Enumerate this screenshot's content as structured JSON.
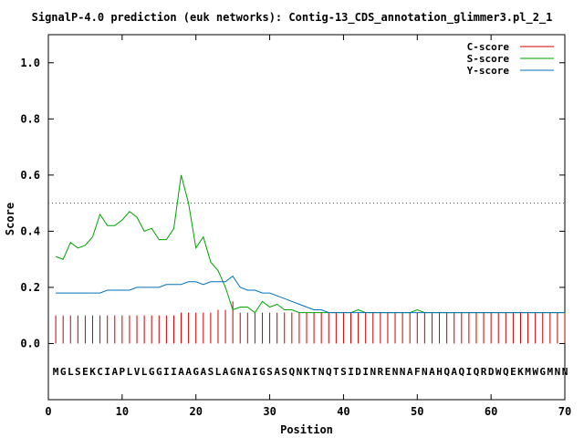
{
  "chart_data": {
    "type": "line",
    "title": "SignalP-4.0 prediction (euk networks): Contig-13_CDS_annotation_glimmer3.pl_2_1",
    "xlabel": "Position",
    "ylabel": "Score",
    "xlim": [
      0,
      70
    ],
    "ylim": [
      -0.2,
      1.1
    ],
    "xticks": [
      0,
      10,
      20,
      30,
      40,
      50,
      60,
      70
    ],
    "yticks": [
      0.0,
      0.2,
      0.4,
      0.6,
      0.8,
      1.0
    ],
    "xtick_labels": [
      "0",
      "10",
      "20",
      "30",
      "40",
      "50",
      "60",
      "70"
    ],
    "ytick_labels": [
      "0.0",
      "0.2",
      "0.4",
      "0.6",
      "0.8",
      "1.0"
    ],
    "grid": false,
    "legend_position": "top-right",
    "threshold": {
      "y": 0.5,
      "color": "#cc00cc",
      "style": "dotted"
    },
    "sequence": "MGLSEKCIAPLVLGGIIAAGASLAGNAIGSASQNKTNQTSIDINRENNAFNAHQAQIQRDWQEKMWGMNN",
    "sequence_y": -0.1,
    "series": [
      {
        "name": "C-score",
        "style": "impulses",
        "color": "#cc0000",
        "x": [
          1,
          2,
          3,
          4,
          5,
          6,
          7,
          8,
          9,
          10,
          11,
          12,
          13,
          14,
          15,
          16,
          17,
          18,
          19,
          20,
          21,
          22,
          23,
          24,
          25,
          26,
          27,
          28,
          29,
          30,
          31,
          32,
          33,
          34,
          35,
          36,
          37,
          38,
          39,
          40,
          41,
          42,
          43,
          44,
          45,
          46,
          47,
          48,
          49,
          50,
          51,
          52,
          53,
          54,
          55,
          56,
          57,
          58,
          59,
          60,
          61,
          62,
          63,
          64,
          65,
          66,
          67,
          68,
          69,
          70
        ],
        "values": [
          0.1,
          0.1,
          0.1,
          0.1,
          0.1,
          0.1,
          0.1,
          0.1,
          0.1,
          0.1,
          0.1,
          0.1,
          0.1,
          0.1,
          0.1,
          0.1,
          0.1,
          0.11,
          0.11,
          0.11,
          0.11,
          0.11,
          0.12,
          0.12,
          0.15,
          0.11,
          0.11,
          0.11,
          0.11,
          0.11,
          0.11,
          0.11,
          0.11,
          0.11,
          0.11,
          0.11,
          0.11,
          0.11,
          0.11,
          0.11,
          0.11,
          0.11,
          0.11,
          0.11,
          0.11,
          0.11,
          0.11,
          0.11,
          0.11,
          0.11,
          0.11,
          0.11,
          0.11,
          0.11,
          0.11,
          0.11,
          0.11,
          0.11,
          0.11,
          0.11,
          0.11,
          0.11,
          0.11,
          0.11,
          0.11,
          0.11,
          0.11,
          0.11,
          0.11,
          0.11
        ]
      },
      {
        "name": "S-score",
        "style": "line",
        "color": "#00a000",
        "x": [
          1,
          2,
          3,
          4,
          5,
          6,
          7,
          8,
          9,
          10,
          11,
          12,
          13,
          14,
          15,
          16,
          17,
          18,
          19,
          20,
          21,
          22,
          23,
          24,
          25,
          26,
          27,
          28,
          29,
          30,
          31,
          32,
          33,
          34,
          35,
          36,
          37,
          38,
          39,
          40,
          41,
          42,
          43,
          44,
          45,
          46,
          47,
          48,
          49,
          50,
          51,
          52,
          53,
          54,
          55,
          56,
          57,
          58,
          59,
          60,
          61,
          62,
          63,
          64,
          65,
          66,
          67,
          68,
          69,
          70
        ],
        "values": [
          0.31,
          0.3,
          0.36,
          0.34,
          0.35,
          0.38,
          0.46,
          0.42,
          0.42,
          0.44,
          0.47,
          0.45,
          0.4,
          0.41,
          0.37,
          0.37,
          0.41,
          0.6,
          0.5,
          0.34,
          0.38,
          0.29,
          0.26,
          0.2,
          0.12,
          0.13,
          0.13,
          0.11,
          0.15,
          0.13,
          0.14,
          0.12,
          0.12,
          0.11,
          0.11,
          0.11,
          0.11,
          0.11,
          0.11,
          0.11,
          0.11,
          0.12,
          0.11,
          0.11,
          0.11,
          0.11,
          0.11,
          0.11,
          0.11,
          0.12,
          0.11,
          0.11,
          0.11,
          0.11,
          0.11,
          0.11,
          0.11,
          0.11,
          0.11,
          0.11,
          0.11,
          0.11,
          0.11,
          0.11,
          0.11,
          0.11,
          0.11,
          0.11,
          0.11,
          0.11
        ]
      },
      {
        "name": "Y-score",
        "style": "line",
        "color": "#0070c0",
        "x": [
          1,
          2,
          3,
          4,
          5,
          6,
          7,
          8,
          9,
          10,
          11,
          12,
          13,
          14,
          15,
          16,
          17,
          18,
          19,
          20,
          21,
          22,
          23,
          24,
          25,
          26,
          27,
          28,
          29,
          30,
          31,
          32,
          33,
          34,
          35,
          36,
          37,
          38,
          39,
          40,
          41,
          42,
          43,
          44,
          45,
          46,
          47,
          48,
          49,
          50,
          51,
          52,
          53,
          54,
          55,
          56,
          57,
          58,
          59,
          60,
          61,
          62,
          63,
          64,
          65,
          66,
          67,
          68,
          69,
          70
        ],
        "values": [
          0.18,
          0.18,
          0.18,
          0.18,
          0.18,
          0.18,
          0.18,
          0.19,
          0.19,
          0.19,
          0.19,
          0.2,
          0.2,
          0.2,
          0.2,
          0.21,
          0.21,
          0.21,
          0.22,
          0.22,
          0.21,
          0.22,
          0.22,
          0.22,
          0.24,
          0.2,
          0.19,
          0.19,
          0.18,
          0.18,
          0.17,
          0.16,
          0.15,
          0.14,
          0.13,
          0.12,
          0.12,
          0.11,
          0.11,
          0.11,
          0.11,
          0.11,
          0.11,
          0.11,
          0.11,
          0.11,
          0.11,
          0.11,
          0.11,
          0.11,
          0.11,
          0.11,
          0.11,
          0.11,
          0.11,
          0.11,
          0.11,
          0.11,
          0.11,
          0.11,
          0.11,
          0.11,
          0.11,
          0.11,
          0.11,
          0.11,
          0.11,
          0.11,
          0.11,
          0.11
        ]
      }
    ]
  }
}
